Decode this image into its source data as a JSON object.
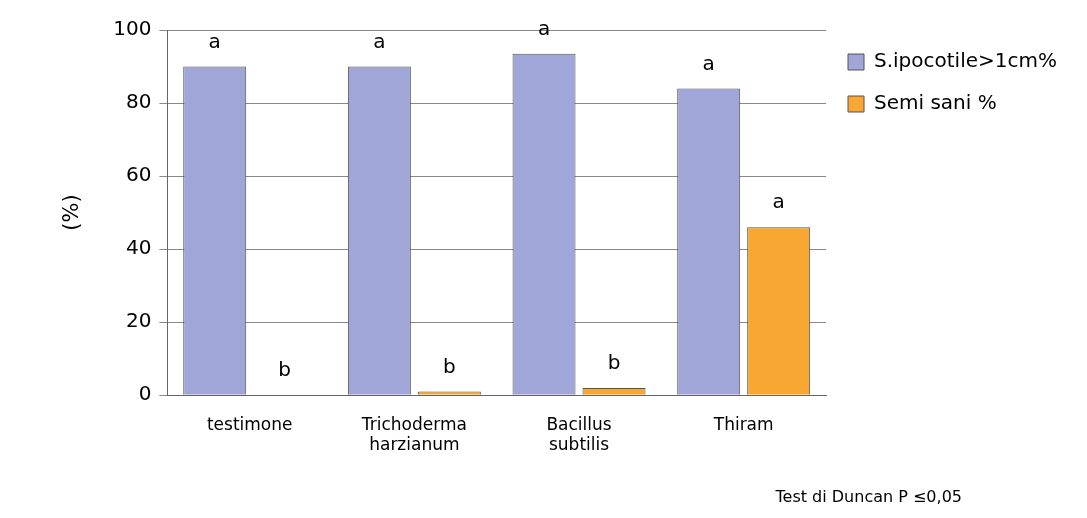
{
  "chart_data": {
    "type": "bar",
    "ylabel": "(%)",
    "categories": [
      "testimone",
      "Trichoderma harzianum",
      "Bacillus subtilis",
      "Thiram"
    ],
    "series": [
      {
        "name": "S.ipocotile>1cm%",
        "color": "#a0a6d8",
        "values": [
          90,
          90,
          93.5,
          84
        ]
      },
      {
        "name": "Semi sani %",
        "color": "#f8a832",
        "values": [
          0,
          1,
          2,
          46
        ]
      }
    ],
    "ylim": [
      0,
      100
    ],
    "yticks": [
      0,
      20,
      40,
      60,
      80,
      100
    ],
    "grid": "y",
    "legend": "top right",
    "annotations": [
      {
        "text": "a",
        "x": "testimone",
        "y": 90
      },
      {
        "text": "b",
        "x": "testimone",
        "y": 0
      },
      {
        "text": "a",
        "x": "Trichoderma harzianum",
        "y": 90
      },
      {
        "text": "b",
        "x": "Trichoderma harzianum",
        "y": 1
      },
      {
        "text": "a",
        "x": "Bacillus subtilis",
        "y": 93.5
      },
      {
        "text": "b",
        "x": "Bacillus subtilis",
        "y": 2
      },
      {
        "text": "a",
        "x": "Thiram",
        "y": 84
      },
      {
        "text": "a",
        "x": "Thiram",
        "y": 46
      },
      "Test di Duncan P  ≤0,05"
    ]
  }
}
